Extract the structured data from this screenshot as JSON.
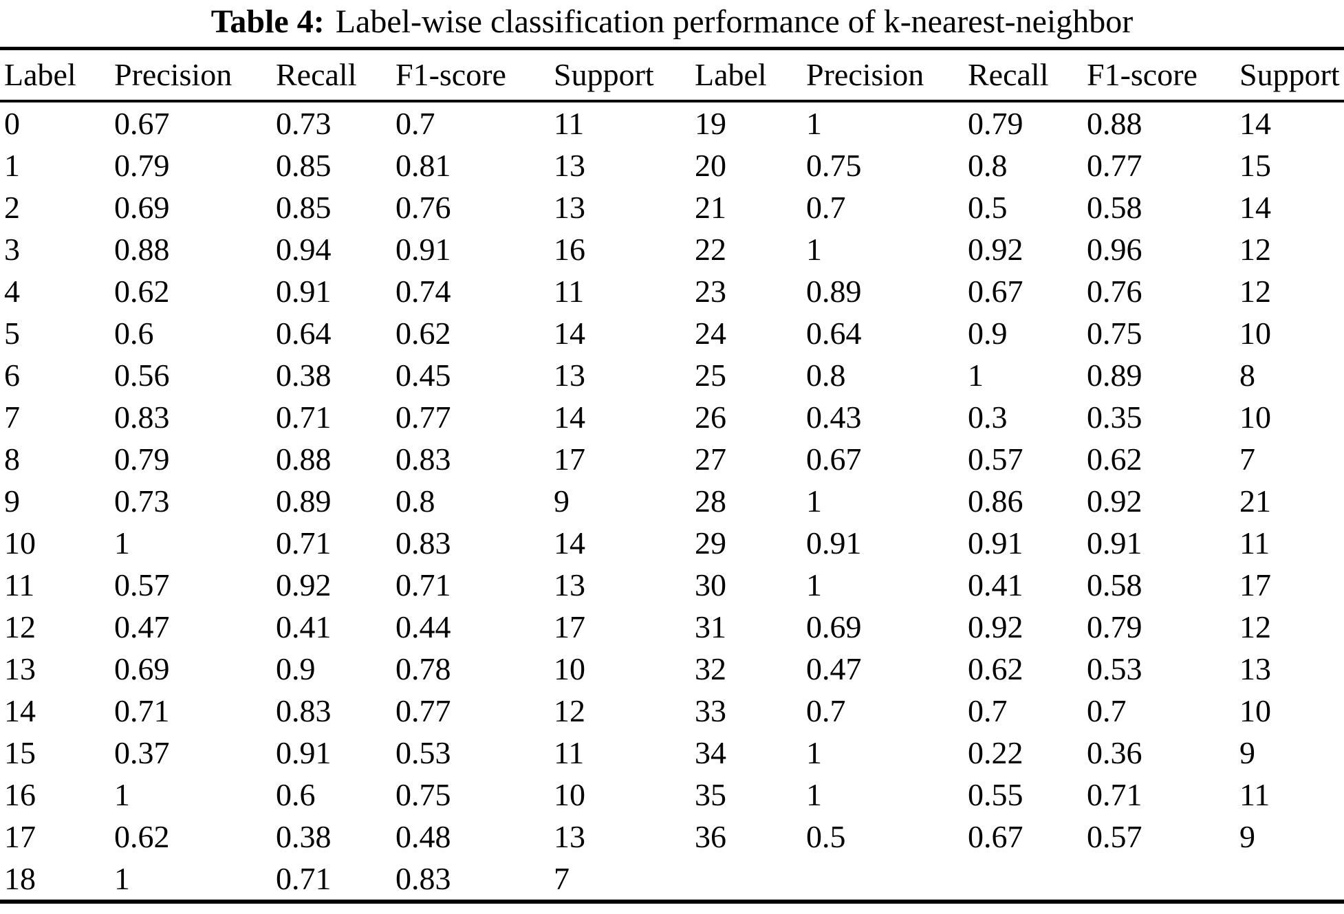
{
  "title": {
    "label": "Table 4:",
    "text": "Label-wise classification performance of k-nearest-neighbor"
  },
  "colors": {
    "text": "#000000",
    "background": "#ffffff",
    "rule": "#000000"
  },
  "table": {
    "headers": [
      "Label",
      "Precision",
      "Recall",
      "F1-score",
      "Support",
      "Label",
      "Precision",
      "Recall",
      "F1-score",
      "Support"
    ],
    "rows": [
      [
        "0",
        "0.67",
        "0.73",
        "0.7",
        "11",
        "19",
        "1",
        "0.79",
        "0.88",
        "14"
      ],
      [
        "1",
        "0.79",
        "0.85",
        "0.81",
        "13",
        "20",
        "0.75",
        "0.8",
        "0.77",
        "15"
      ],
      [
        "2",
        "0.69",
        "0.85",
        "0.76",
        "13",
        "21",
        "0.7",
        "0.5",
        "0.58",
        "14"
      ],
      [
        "3",
        "0.88",
        "0.94",
        "0.91",
        "16",
        "22",
        "1",
        "0.92",
        "0.96",
        "12"
      ],
      [
        "4",
        "0.62",
        "0.91",
        "0.74",
        "11",
        "23",
        "0.89",
        "0.67",
        "0.76",
        "12"
      ],
      [
        "5",
        "0.6",
        "0.64",
        "0.62",
        "14",
        "24",
        "0.64",
        "0.9",
        "0.75",
        "10"
      ],
      [
        "6",
        "0.56",
        "0.38",
        "0.45",
        "13",
        "25",
        "0.8",
        "1",
        "0.89",
        "8"
      ],
      [
        "7",
        "0.83",
        "0.71",
        "0.77",
        "14",
        "26",
        "0.43",
        "0.3",
        "0.35",
        "10"
      ],
      [
        "8",
        "0.79",
        "0.88",
        "0.83",
        "17",
        "27",
        "0.67",
        "0.57",
        "0.62",
        "7"
      ],
      [
        "9",
        "0.73",
        "0.89",
        "0.8",
        "9",
        "28",
        "1",
        "0.86",
        "0.92",
        "21"
      ],
      [
        "10",
        "1",
        "0.71",
        "0.83",
        "14",
        "29",
        "0.91",
        "0.91",
        "0.91",
        "11"
      ],
      [
        "11",
        "0.57",
        "0.92",
        "0.71",
        "13",
        "30",
        "1",
        "0.41",
        "0.58",
        "17"
      ],
      [
        "12",
        "0.47",
        "0.41",
        "0.44",
        "17",
        "31",
        "0.69",
        "0.92",
        "0.79",
        "12"
      ],
      [
        "13",
        "0.69",
        "0.9",
        "0.78",
        "10",
        "32",
        "0.47",
        "0.62",
        "0.53",
        "13"
      ],
      [
        "14",
        "0.71",
        "0.83",
        "0.77",
        "12",
        "33",
        "0.7",
        "0.7",
        "0.7",
        "10"
      ],
      [
        "15",
        "0.37",
        "0.91",
        "0.53",
        "11",
        "34",
        "1",
        "0.22",
        "0.36",
        "9"
      ],
      [
        "16",
        "1",
        "0.6",
        "0.75",
        "10",
        "35",
        "1",
        "0.55",
        "0.71",
        "11"
      ],
      [
        "17",
        "0.62",
        "0.38",
        "0.48",
        "13",
        "36",
        "0.5",
        "0.67",
        "0.57",
        "9"
      ],
      [
        "18",
        "1",
        "0.71",
        "0.83",
        "7",
        "",
        "",
        "",
        "",
        ""
      ]
    ]
  }
}
